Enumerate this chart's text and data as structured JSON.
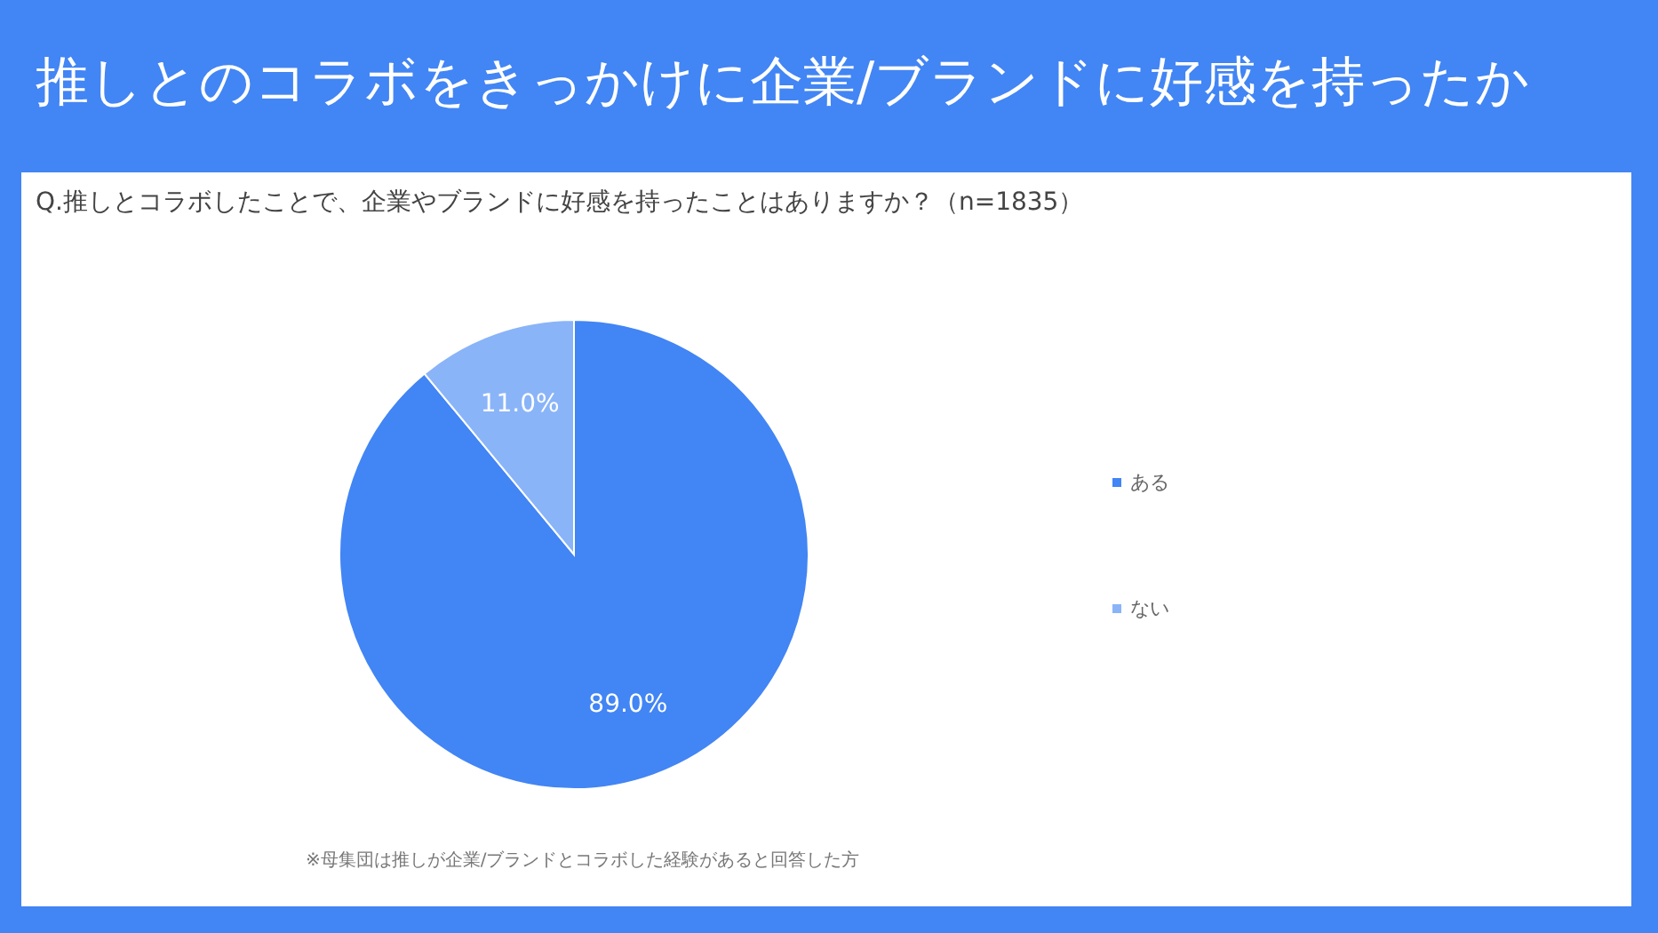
{
  "chart_data": {
    "type": "pie",
    "title": "推しとのコラボをきっかけに企業/ブランドに好感を持ったか",
    "subtitle": "Q.推しとコラボしたことで、企業やブランドに好感を持ったことはありますか？（n=1835）",
    "categories": [
      "ある",
      "ない"
    ],
    "values": [
      89.0,
      11.0
    ],
    "colors": [
      "#4285f4",
      "#8ab4f8"
    ],
    "value_labels": [
      "89.0%",
      "11.0%"
    ],
    "legend": "right",
    "annotations": [
      "※母集団は推しが企業/ブランドとコラボした経験があると回答した方"
    ]
  }
}
